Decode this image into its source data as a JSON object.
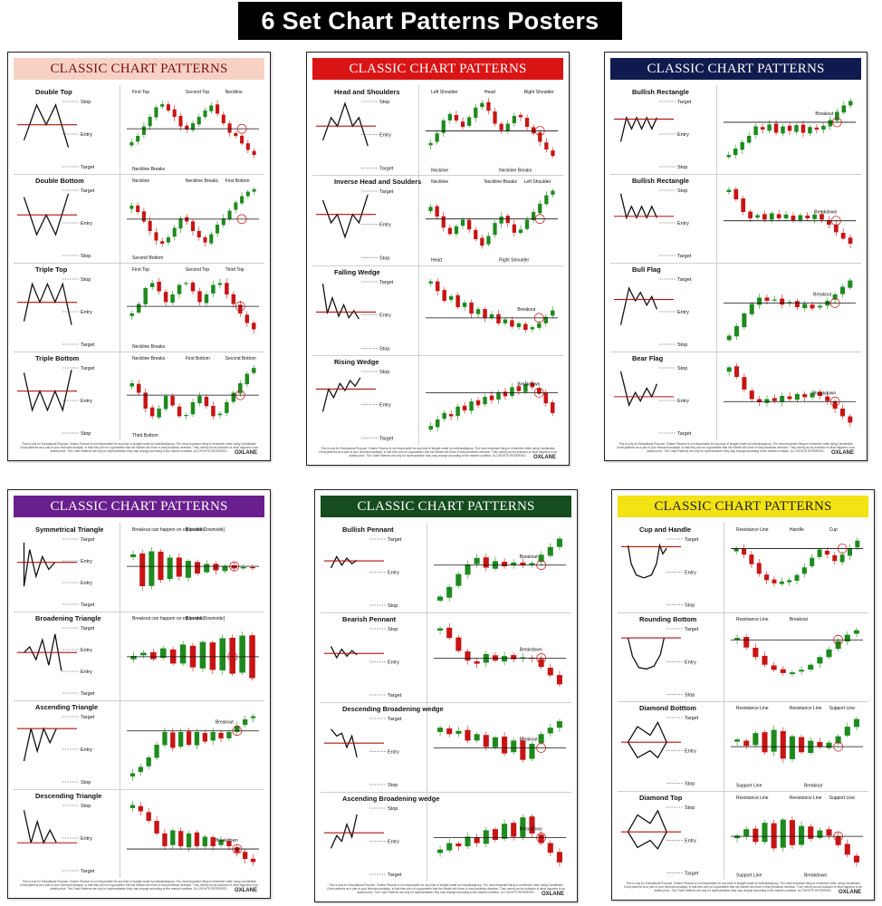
{
  "banner": {
    "title": "6 Set Chart Patterns Posters"
  },
  "colors": {
    "bull": "#1e8a1e",
    "bear": "#c81414",
    "line": "#111111",
    "circle": "#c81414",
    "level_line": "#b01010"
  },
  "footer": {
    "disclaimer": "This is only for Educational Purpose. Oxlane Finance is not responsible for any kind of budget made by individual/group. The most important thing to remember while using Candlestick Chart patterns as a part of your technical analysis, is that they are not a guarantee that the Market will move in that prediction direction. They merely act as indicator of what happens to an assets price. The Chart Patterns are only for representation they may change according to the market condition. ALL RIGHTS RESERVED.",
    "brand": "OXLANE"
  },
  "posters": [
    {
      "header": "CLASSIC CHART PATTERNS",
      "header_bg": "#f7d2c4",
      "header_fg": "#7a0e0e",
      "patterns": [
        {
          "name": "Double Top",
          "shape": "double_top",
          "labels": [
            "Stop",
            "Entry",
            "Target"
          ],
          "chart_labels": [
            "First Top",
            "Second Top",
            "Neckline",
            "Neckline Breaks"
          ]
        },
        {
          "name": "Double Bottom",
          "shape": "double_bottom",
          "labels": [
            "Target",
            "Entry",
            "Stop"
          ],
          "chart_labels": [
            "Neckline",
            "Neckline Breaks",
            "First Bottom",
            "Second Bottom"
          ]
        },
        {
          "name": "Triple Top",
          "shape": "triple_top",
          "labels": [
            "Stop",
            "Entry",
            "Target"
          ],
          "chart_labels": [
            "First Top",
            "Second Top",
            "Third Top",
            "Neckline Breaks"
          ]
        },
        {
          "name": "Triple Bottom",
          "shape": "triple_bottom",
          "labels": [
            "Target",
            "Entry",
            "Stop"
          ],
          "chart_labels": [
            "Neckline Breaks",
            "First Bottom",
            "Second Bottom",
            "Third Bottom"
          ]
        }
      ]
    },
    {
      "header": "CLASSIC CHART PATTERNS",
      "header_bg": "#d91414",
      "header_fg": "#ffffff",
      "patterns": [
        {
          "name": "Head and Shoulders",
          "shape": "hns",
          "labels": [
            "Stop",
            "Entry",
            "Target"
          ],
          "chart_labels": [
            "Left Shoulder",
            "Head",
            "Right Shoulder",
            "Neckline",
            "Neckline Breaks"
          ]
        },
        {
          "name": "Inverse Head and Soulders",
          "shape": "inv_hns",
          "labels": [
            "Target",
            "Entry",
            "Stop"
          ],
          "chart_labels": [
            "Neckline",
            "Neckline Breaks",
            "Left Shoulder",
            "Head",
            "Right Shoulder"
          ]
        },
        {
          "name": "Falling Wedge",
          "shape": "falling_wedge",
          "labels": [
            "Target",
            "Entry",
            "Stop"
          ],
          "chart_labels": [
            "Breakout"
          ]
        },
        {
          "name": "Rising Wedge",
          "shape": "rising_wedge",
          "labels": [
            "Stop",
            "Entry",
            "Target"
          ],
          "chart_labels": [
            "Breakdown"
          ]
        }
      ]
    },
    {
      "header": "CLASSIC CHART PATTERNS",
      "header_bg": "#111a4e",
      "header_fg": "#ffffff",
      "patterns": [
        {
          "name": "Bullish Rectangle",
          "shape": "bull_rect",
          "labels": [
            "Target",
            "Entry",
            "Stop"
          ],
          "chart_labels": [
            "Breakout"
          ]
        },
        {
          "name": "Bullish Rectangle",
          "shape": "bear_rect",
          "labels": [
            "Stop",
            "Entry",
            "Target"
          ],
          "chart_labels": [
            "Breakdown"
          ]
        },
        {
          "name": "Bull Flag",
          "shape": "bull_flag",
          "labels": [
            "Target",
            "Entry",
            "Stop"
          ],
          "chart_labels": [
            "Breakout"
          ]
        },
        {
          "name": "Bear Flag",
          "shape": "bear_flag",
          "labels": [
            "Stop",
            "Entry",
            "Target"
          ],
          "chart_labels": [
            "Breakdown"
          ]
        }
      ]
    },
    {
      "header": "CLASSIC CHART PATTERNS",
      "header_bg": "#6a1f8e",
      "header_fg": "#ffffff",
      "patterns": [
        {
          "name": "Symmetrical Triangle",
          "shape": "sym_tri",
          "labels": [
            "Target",
            "Entry",
            "Entry",
            "Target"
          ],
          "chart_labels": [
            "Breakout can happen on either side,",
            "[Upside/ Downside]"
          ]
        },
        {
          "name": "Broadening Triangle",
          "shape": "broad_tri",
          "labels": [
            "Target",
            "Entry",
            "Entry",
            "Target"
          ],
          "chart_labels": [
            "Breakout can happen on either side,",
            "[Upside/ Downside]"
          ]
        },
        {
          "name": "Ascending Triangle",
          "shape": "asc_tri",
          "labels": [
            "Target",
            "Entry",
            "Stop"
          ],
          "chart_labels": [
            "Breakout"
          ]
        },
        {
          "name": "Descending Triangle",
          "shape": "desc_tri",
          "labels": [
            "Stop",
            "Entry",
            "Target"
          ],
          "chart_labels": [
            "Breakdown"
          ]
        }
      ]
    },
    {
      "header": "CLASSIC CHART PATTERNS",
      "header_bg": "#154d1f",
      "header_fg": "#ffffff",
      "patterns": [
        {
          "name": "Bullish Pennant",
          "shape": "bull_pennant",
          "labels": [
            "Target",
            "Entry",
            "Stop"
          ],
          "chart_labels": [
            "Breakout"
          ]
        },
        {
          "name": "Bearish Pennant",
          "shape": "bear_pennant",
          "labels": [
            "Stop",
            "Entry",
            "Target"
          ],
          "chart_labels": [
            "Breakdown"
          ]
        },
        {
          "name": "Descending Broadening wedge",
          "shape": "desc_broad",
          "labels": [
            "Target",
            "Entry",
            "Stop"
          ],
          "chart_labels": [
            "Breakout"
          ]
        },
        {
          "name": "Ascending Broadening wedge",
          "shape": "asc_broad",
          "labels": [
            "Stop",
            "Entry",
            "Target"
          ],
          "chart_labels": [
            "Breakdown"
          ]
        }
      ]
    },
    {
      "header": "CLASSIC CHART PATTERNS",
      "header_bg": "#f3e214",
      "header_fg": "#222222",
      "patterns": [
        {
          "name": "Cup and Handle",
          "shape": "cup",
          "labels": [
            "Target",
            "Entry",
            "Stop"
          ],
          "chart_labels": [
            "Resistance Line",
            "Handle",
            "Cup"
          ]
        },
        {
          "name": "Rounding Bottom",
          "shape": "round_bottom",
          "labels": [
            "Target",
            "Entry",
            "Stop"
          ],
          "chart_labels": [
            "Resistance Line",
            "Breakout"
          ]
        },
        {
          "name": "Diamond Botttom",
          "shape": "diamond_bottom",
          "labels": [
            "Target",
            "Entry",
            "Stop"
          ],
          "chart_labels": [
            "Resistance Line",
            "Resistance Line",
            "Support Line",
            "Support Line",
            "Breakout"
          ]
        },
        {
          "name": "Diamond Top",
          "shape": "diamond_top",
          "labels": [
            "Stop",
            "Entry",
            "Target"
          ],
          "chart_labels": [
            "Resistance Line",
            "Resistance Line",
            "Support Line",
            "Support Line",
            "Breakdown"
          ]
        }
      ]
    }
  ]
}
